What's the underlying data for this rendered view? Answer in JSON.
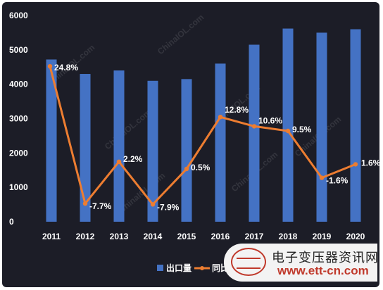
{
  "chart_data": {
    "type": "bar",
    "categories": [
      "2011",
      "2012",
      "2013",
      "2014",
      "2015",
      "2016",
      "2017",
      "2018",
      "2019",
      "2020"
    ],
    "series": [
      {
        "name": "出口量",
        "type": "bar",
        "color": "#4472c4",
        "values": [
          4720,
          4300,
          4400,
          4100,
          4150,
          4600,
          5150,
          5620,
          5500,
          5600
        ]
      },
      {
        "name": "同比",
        "type": "line",
        "color": "#ed7d31",
        "values": [
          24.8,
          -7.7,
          2.2,
          -7.9,
          0.5,
          12.8,
          10.6,
          9.5,
          -1.6,
          1.6
        ],
        "labels": [
          "24.8%",
          "-7.7%",
          "2.2%",
          "-7.9%",
          "0.5%",
          "12.8%",
          "10.6%",
          "9.5%",
          "-1.6%",
          "1.6%"
        ]
      }
    ],
    "y_ticks": [
      "0",
      "1000",
      "2000",
      "3000",
      "4000",
      "5000",
      "6000"
    ],
    "ylim": [
      0,
      6000
    ],
    "grid": false,
    "legend_position": "bottom"
  },
  "watermark": "ChinaIOL.com",
  "logo": {
    "title": "电子变压器资讯网",
    "url": "www.ett-cn.com"
  }
}
